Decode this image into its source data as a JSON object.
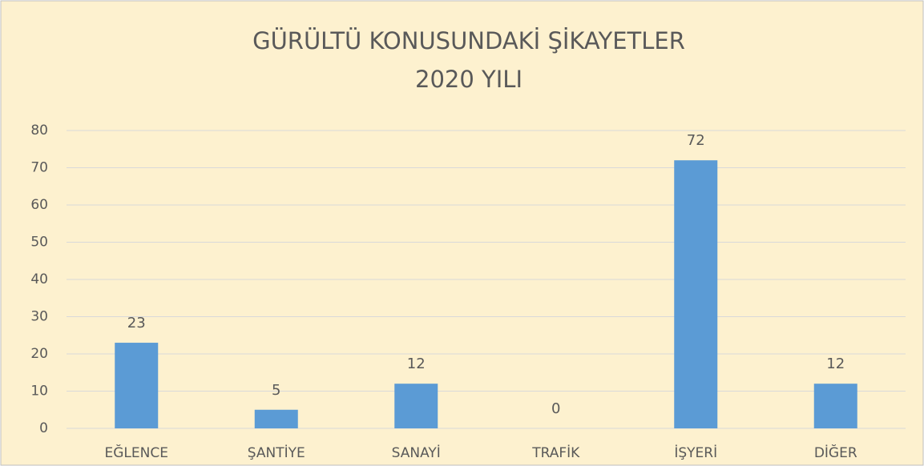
{
  "chart_data": {
    "type": "bar",
    "title": [
      "GÜRÜLTÜ KONUSUNDAKİ ŞİKAYETLER",
      "2020 YILI"
    ],
    "categories": [
      "EĞLENCE",
      "ŞANTİYE",
      "SANAYİ",
      "TRAFİK",
      "İŞYERİ",
      "DİĞER"
    ],
    "values": [
      23,
      5,
      12,
      0,
      72,
      12
    ],
    "color": "#5b9bd5",
    "ylim": [
      0,
      80
    ],
    "yticks": [
      0,
      10,
      20,
      30,
      40,
      50,
      60,
      70,
      80
    ],
    "grid": true,
    "data_labels": true
  }
}
